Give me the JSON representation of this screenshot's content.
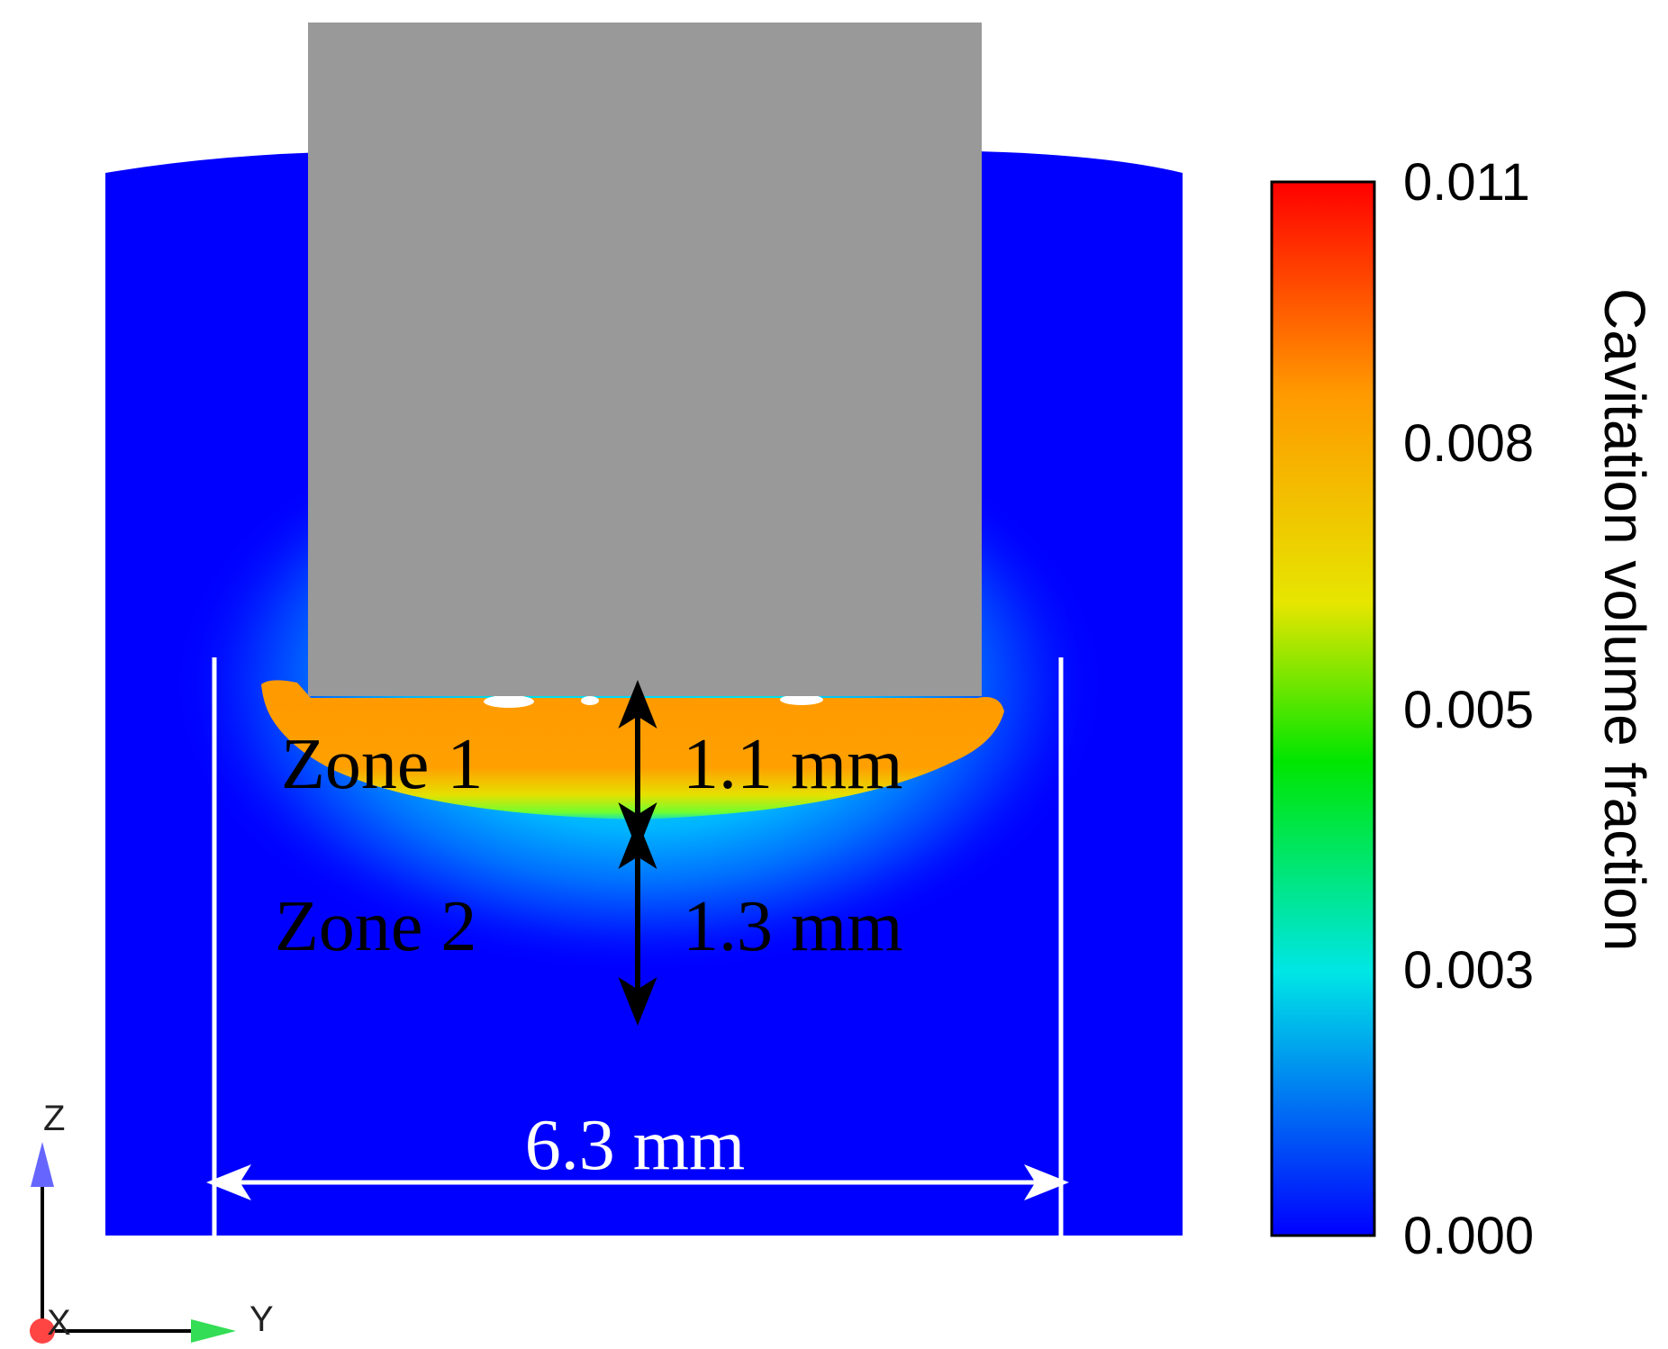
{
  "colors": {
    "background": "#0000ff",
    "horn": "#999999",
    "zone1": "#ff9900",
    "annotation_black": "#000000",
    "annotation_white": "#ffffff"
  },
  "annotations": {
    "zone1_label": "Zone 1",
    "zone1_depth": "1.1 mm",
    "zone2_label": "Zone 2",
    "zone2_depth": "1.3 mm",
    "width": "6.3 mm"
  },
  "colorbar": {
    "title": "Cavitation volume fraction",
    "ticks": [
      "0.011",
      "0.008",
      "0.005",
      "0.003",
      "0.000"
    ],
    "colors": [
      "#ff0000",
      "#ff9900",
      "#e6e600",
      "#00e600",
      "#00e6e6",
      "#0000ff"
    ]
  },
  "axes_triad": {
    "z": "Z",
    "y": "Y",
    "x": "X",
    "z_color": "#6666ff",
    "y_color": "#33dd55",
    "x_color": "#ff4444"
  }
}
